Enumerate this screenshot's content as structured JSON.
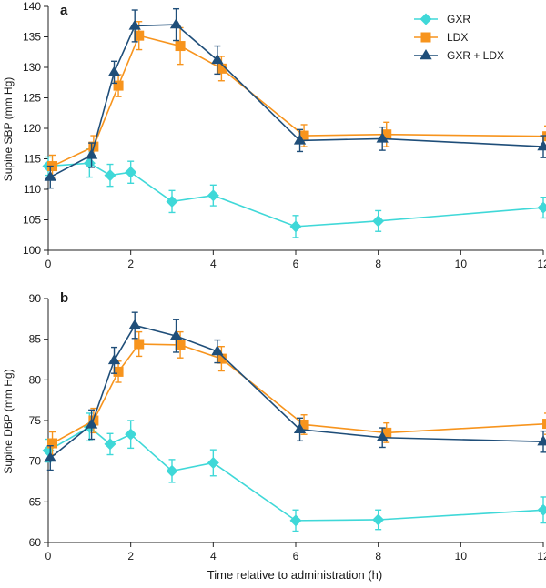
{
  "chart_data": [
    {
      "type": "line",
      "panel_label": "a",
      "title": "",
      "xlabel": "",
      "ylabel": "Supine SBP (mm Hg)",
      "xlim": [
        0,
        12
      ],
      "ylim": [
        100,
        140
      ],
      "xticks": [
        0,
        2,
        4,
        6,
        8,
        10,
        12
      ],
      "yticks": [
        100,
        105,
        110,
        115,
        120,
        125,
        130,
        135,
        140
      ],
      "grid": false,
      "legend_position": "top-right",
      "series": [
        {
          "name": "GXR",
          "color": "#3fd8d8",
          "marker": "diamond",
          "x": [
            0,
            1,
            1.5,
            2,
            3,
            4,
            6,
            8,
            12
          ],
          "values": [
            113.8,
            114.3,
            112.3,
            112.8,
            108.0,
            109.0,
            103.9,
            104.8,
            107.0
          ],
          "errors": [
            1.5,
            2.3,
            1.8,
            1.8,
            1.8,
            1.7,
            1.8,
            1.7,
            1.7
          ]
        },
        {
          "name": "LDX",
          "color": "#f7941d",
          "marker": "square",
          "x": [
            0.1,
            1.1,
            1.7,
            2.2,
            3.2,
            4.2,
            6.2,
            8.2,
            12.1
          ],
          "values": [
            113.8,
            117.0,
            127.0,
            135.2,
            133.5,
            129.8,
            118.8,
            119.0,
            118.7
          ],
          "errors": [
            1.8,
            1.8,
            1.8,
            2.3,
            3.0,
            2.0,
            1.8,
            2.0,
            1.7
          ]
        },
        {
          "name": "GXR + LDX",
          "color": "#1f4e79",
          "marker": "triangle",
          "x": [
            0.05,
            1.05,
            1.6,
            2.1,
            3.1,
            4.1,
            6.1,
            8.1,
            12
          ],
          "values": [
            112.0,
            115.6,
            129.2,
            136.8,
            137.0,
            131.2,
            118.0,
            118.3,
            117.0
          ],
          "errors": [
            1.8,
            2.0,
            1.8,
            2.6,
            2.6,
            2.3,
            1.8,
            1.9,
            1.8
          ]
        }
      ]
    },
    {
      "type": "line",
      "panel_label": "b",
      "title": "",
      "xlabel": "Time relative to administration (h)",
      "ylabel": "Supine DBP (mm Hg)",
      "xlim": [
        0,
        12
      ],
      "ylim": [
        60,
        90
      ],
      "xticks": [
        0,
        2,
        4,
        6,
        8,
        10,
        12
      ],
      "yticks": [
        60,
        65,
        70,
        75,
        80,
        85,
        90
      ],
      "grid": false,
      "legend_position": "",
      "series": [
        {
          "name": "GXR",
          "color": "#3fd8d8",
          "marker": "diamond",
          "x": [
            0,
            1,
            1.5,
            2,
            3,
            4,
            6,
            8,
            12
          ],
          "values": [
            71.3,
            74.2,
            72.1,
            73.3,
            68.8,
            69.8,
            62.7,
            62.8,
            64.0
          ],
          "errors": [
            1.4,
            1.7,
            1.3,
            1.7,
            1.4,
            1.6,
            1.3,
            1.2,
            1.6
          ]
        },
        {
          "name": "LDX",
          "color": "#f7941d",
          "marker": "square",
          "x": [
            0.1,
            1.1,
            1.7,
            2.2,
            3.2,
            4.2,
            6.2,
            8.2,
            12.1
          ],
          "values": [
            72.2,
            75.0,
            81.0,
            84.4,
            84.3,
            82.6,
            74.5,
            73.5,
            74.6
          ],
          "errors": [
            1.4,
            1.5,
            1.3,
            1.5,
            1.6,
            1.5,
            1.2,
            1.2,
            1.3
          ]
        },
        {
          "name": "GXR + LDX",
          "color": "#1f4e79",
          "marker": "triangle",
          "x": [
            0.05,
            1.05,
            1.6,
            2.1,
            3.1,
            4.1,
            6.1,
            8.1,
            12
          ],
          "values": [
            70.4,
            74.5,
            82.4,
            86.7,
            85.4,
            83.5,
            73.9,
            72.9,
            72.4
          ],
          "errors": [
            1.5,
            1.8,
            1.6,
            1.6,
            2.0,
            1.4,
            1.4,
            1.2,
            1.3
          ]
        }
      ]
    }
  ]
}
